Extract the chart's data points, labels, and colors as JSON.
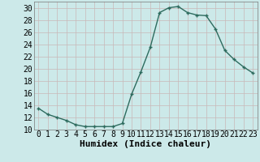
{
  "x": [
    0,
    1,
    2,
    3,
    4,
    5,
    6,
    7,
    8,
    9,
    10,
    11,
    12,
    13,
    14,
    15,
    16,
    17,
    18,
    19,
    20,
    21,
    22,
    23
  ],
  "y": [
    13.5,
    12.5,
    12.0,
    11.5,
    10.8,
    10.5,
    10.5,
    10.5,
    10.5,
    11.0,
    15.8,
    19.5,
    23.5,
    29.2,
    30.0,
    30.2,
    29.2,
    28.8,
    28.7,
    26.5,
    23.0,
    21.5,
    20.3,
    19.3
  ],
  "line_color": "#2d6b5e",
  "marker_color": "#2d6b5e",
  "bg_color": "#cce9e9",
  "grid_major_color": "#c8b8b8",
  "grid_minor_color": "#ddd0d0",
  "xlabel": "Humidex (Indice chaleur)",
  "xlim": [
    -0.5,
    23.5
  ],
  "ylim": [
    10,
    31
  ],
  "yticks": [
    10,
    12,
    14,
    16,
    18,
    20,
    22,
    24,
    26,
    28,
    30
  ],
  "xticks": [
    0,
    1,
    2,
    3,
    4,
    5,
    6,
    7,
    8,
    9,
    10,
    11,
    12,
    13,
    14,
    15,
    16,
    17,
    18,
    19,
    20,
    21,
    22,
    23
  ],
  "xlabel_fontsize": 8,
  "tick_fontsize": 7,
  "linewidth": 1.0,
  "markersize": 3.0
}
